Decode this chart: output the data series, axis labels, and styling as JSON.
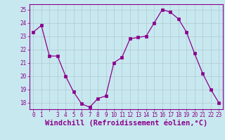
{
  "x": [
    0,
    1,
    2,
    3,
    4,
    5,
    6,
    7,
    8,
    9,
    10,
    11,
    12,
    13,
    14,
    15,
    16,
    17,
    18,
    19,
    20,
    21,
    22,
    23
  ],
  "y": [
    23.3,
    23.8,
    21.5,
    21.5,
    20.0,
    18.8,
    17.9,
    17.65,
    18.3,
    18.5,
    21.0,
    21.4,
    22.8,
    22.9,
    23.0,
    24.0,
    25.0,
    24.8,
    24.3,
    23.3,
    21.7,
    20.2,
    19.0,
    18.0
  ],
  "line_color": "#8b008b",
  "marker": "s",
  "marker_size": 2.5,
  "bg_color": "#c8e8f0",
  "grid_color": "#b0c8d0",
  "xlabel": "Windchill (Refroidissement éolien,°C)",
  "ylim": [
    17.5,
    25.4
  ],
  "yticks": [
    18,
    19,
    20,
    21,
    22,
    23,
    24,
    25
  ],
  "xtick_all": [
    0,
    1,
    2,
    3,
    4,
    5,
    6,
    7,
    8,
    9,
    10,
    11,
    12,
    13,
    14,
    15,
    16,
    17,
    18,
    19,
    20,
    21,
    22,
    23
  ],
  "xtick_labels": [
    "0",
    "1",
    "",
    "3",
    "4",
    "5",
    "6",
    "7",
    "8",
    "9",
    "10",
    "11",
    "12",
    "13",
    "14",
    "15",
    "16",
    "17",
    "18",
    "19",
    "20",
    "21",
    "22",
    "23"
  ],
  "tick_fontsize": 5.5,
  "xlabel_fontsize": 7.5,
  "xlim": [
    -0.5,
    23.5
  ]
}
